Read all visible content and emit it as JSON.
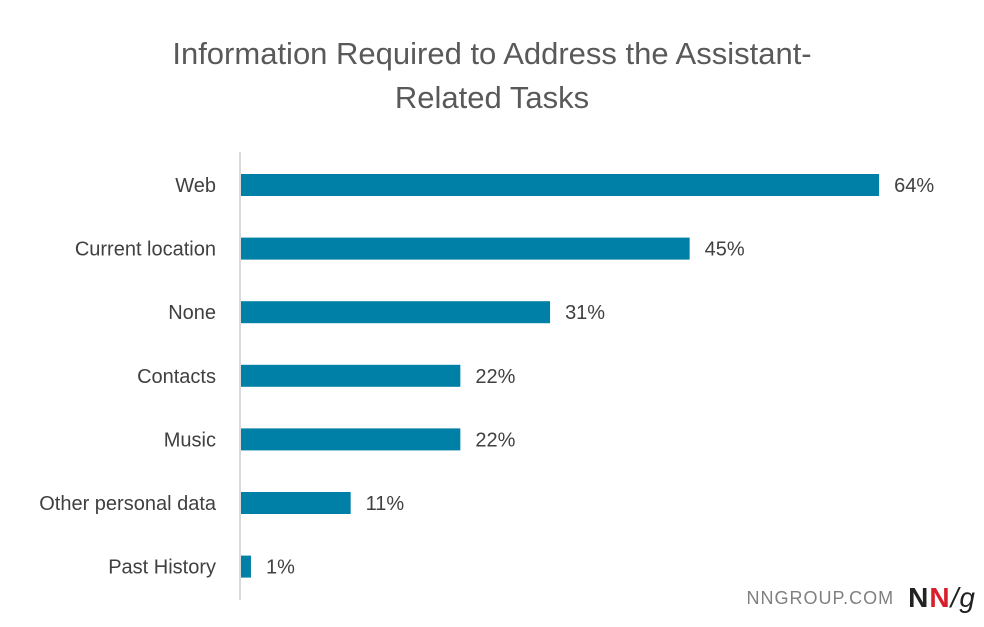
{
  "chart_data": {
    "type": "bar",
    "orientation": "horizontal",
    "title": "Information Required to Address the Assistant-Related Tasks",
    "title_lines": [
      "Information Required to Address the Assistant-",
      "Related Tasks"
    ],
    "categories": [
      "Web",
      "Current location",
      "None",
      "Contacts",
      "Music",
      "Other personal data",
      "Past History"
    ],
    "values": [
      64,
      45,
      31,
      22,
      22,
      11,
      1
    ],
    "value_labels": [
      "64%",
      "45%",
      "31%",
      "22%",
      "22%",
      "11%",
      "1%"
    ],
    "xlim": [
      0,
      100
    ],
    "grid": false,
    "legend": "none",
    "bar_color": "#0080a6",
    "axis_color": "#d9d9d9",
    "label_color": "#404040"
  },
  "watermark": {
    "site": "NNGROUP.COM",
    "logo_n1": "N",
    "logo_n2": "N",
    "logo_slash": "/",
    "logo_g": "g"
  }
}
